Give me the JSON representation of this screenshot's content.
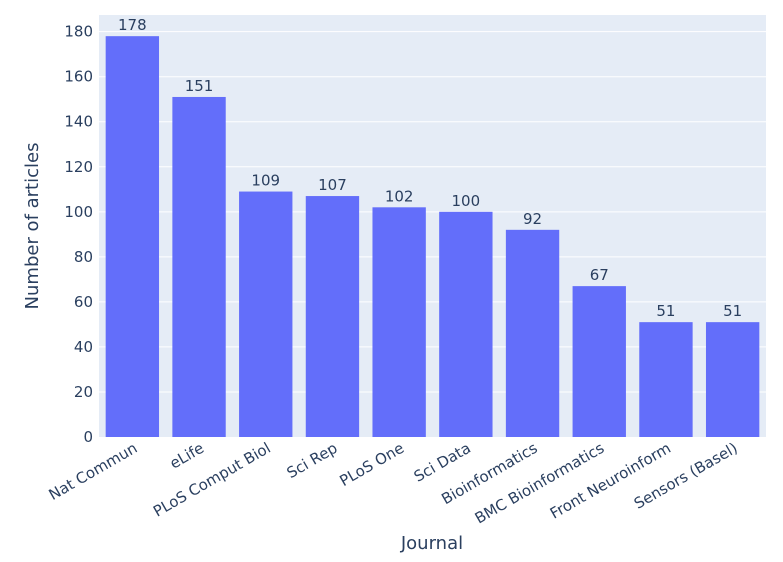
{
  "chart_data": {
    "type": "bar",
    "title": "",
    "xlabel": "Journal",
    "ylabel": "Number of articles",
    "categories": [
      "Nat Commun",
      "eLife",
      "PLoS Comput Biol",
      "Sci Rep",
      "PLoS One",
      "Sci Data",
      "Bioinformatics",
      "BMC Bioinformatics",
      "Front Neuroinform",
      "Sensors (Basel)"
    ],
    "values": [
      178,
      151,
      109,
      107,
      102,
      100,
      92,
      67,
      51,
      51
    ],
    "data_labels": [
      "178",
      "151",
      "109",
      "107",
      "102",
      "100",
      "92",
      "67",
      "51",
      "51"
    ],
    "yticks": [
      0,
      20,
      40,
      60,
      80,
      100,
      120,
      140,
      160,
      180
    ],
    "ytick_labels": [
      "0",
      "20",
      "40",
      "60",
      "80",
      "100",
      "120",
      "140",
      "160",
      "180"
    ],
    "ylim": [
      0,
      187.4
    ],
    "grid": true,
    "legend": false,
    "colors": {
      "bar": "#636efa",
      "plot_bg": "#e5ecf6",
      "grid": "#ffffff",
      "text": "#2a3f5f"
    }
  }
}
